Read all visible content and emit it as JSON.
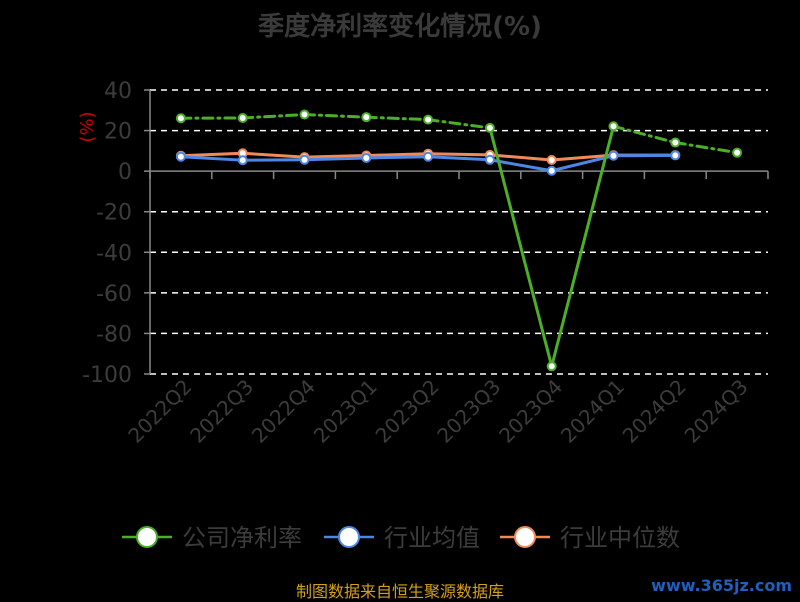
{
  "chart_data": {
    "type": "line",
    "title": "季度净利率变化情况(%)",
    "ylabel": "(%)",
    "categories": [
      "2022Q2",
      "2022Q3",
      "2022Q4",
      "2023Q1",
      "2023Q2",
      "2023Q3",
      "2023Q4",
      "2024Q1",
      "2024Q2",
      "2024Q3"
    ],
    "ylim": [
      -100,
      40
    ],
    "yticks": [
      40,
      20,
      0,
      -20,
      -40,
      -60,
      -80,
      -100
    ],
    "grid": true,
    "legend_position": "bottom",
    "series": [
      {
        "name": "公司净利率",
        "color": "#4caf29",
        "dashed_segments": [
          0,
          1,
          2,
          3,
          4,
          7,
          8
        ],
        "values": [
          26.1,
          26.2,
          27.9,
          26.6,
          25.4,
          21.3,
          -96.2,
          22.1,
          14.1,
          9.1
        ]
      },
      {
        "name": "行业均值",
        "color": "#4e86e4",
        "values": [
          7.1,
          5.4,
          5.6,
          6.5,
          7.1,
          5.6,
          0.2,
          7.6,
          7.8,
          null
        ]
      },
      {
        "name": "行业中位数",
        "color": "#f08a5d",
        "values": [
          7.6,
          8.8,
          6.9,
          7.7,
          8.6,
          8.0,
          5.5,
          7.9,
          7.9,
          null
        ]
      }
    ]
  },
  "source": "制图数据来自恒生聚源数据库",
  "watermark": "www.365jz.com"
}
